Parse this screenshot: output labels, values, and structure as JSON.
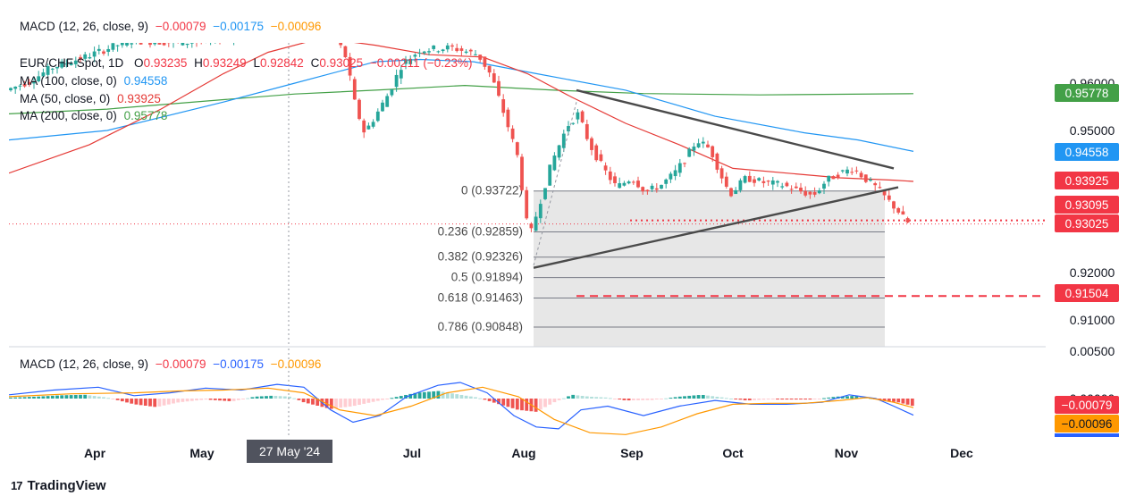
{
  "header": {
    "macd_top": {
      "label": "MACD (12, 26, close, 9)",
      "v1": "−0.00079",
      "v2": "−0.00175",
      "v3": "−0.00096"
    },
    "symbol": {
      "name": "EUR/CHF Spot, 1D",
      "o_label": "O",
      "o": "0.93235",
      "h_label": "H",
      "h": "0.93249",
      "l_label": "L",
      "l": "0.92842",
      "c_label": "C",
      "c": "0.93025",
      "change": "−0.00211 (−0.23%)"
    },
    "ma100": {
      "label": "MA (100, close, 0)",
      "value": "0.94558"
    },
    "ma50": {
      "label": "MA (50, close, 0)",
      "value": "0.93925"
    },
    "ma200": {
      "label": "MA (200, close, 0)",
      "value": "0.95778"
    },
    "macd_pane": {
      "label": "MACD (12, 26, close, 9)",
      "v1": "−0.00079",
      "v2": "−0.00175",
      "v3": "−0.00096"
    }
  },
  "colors": {
    "up": "#26a69a",
    "down": "#ef5350",
    "ma100": "#2196f3",
    "ma50": "#e53935",
    "ma200": "#43a047",
    "macd_line": "#2962ff",
    "signal_line": "#ff9800",
    "price_badge": "#f23645",
    "fib_fill": "#e0e0e0"
  },
  "chart_data": {
    "type": "candlestick",
    "symbol": "EUR/CHF Spot",
    "interval": "1D",
    "price_axis": {
      "ticks": [
        "0.96000",
        "0.95000",
        "0.92000",
        "0.91000"
      ],
      "range": [
        0.9059,
        0.966
      ]
    },
    "time_axis": {
      "ticks": [
        "Apr",
        "May",
        "Jul",
        "Aug",
        "Sep",
        "Oct",
        "Nov",
        "Dec"
      ],
      "crosshair_label": "27 May '24"
    },
    "macd_axis": {
      "ticks": [
        "0.00500",
        "0.00000"
      ]
    },
    "ohlc_last": {
      "open": 0.93235,
      "high": 0.93249,
      "low": 0.92842,
      "close": 0.93025,
      "change": -0.00211,
      "change_pct": -0.23
    },
    "moving_averages": [
      {
        "name": "MA (100, close, 0)",
        "value": 0.94558
      },
      {
        "name": "MA (50, close, 0)",
        "value": 0.93925
      },
      {
        "name": "MA (200, close, 0)",
        "value": 0.95778
      }
    ],
    "fibonacci": [
      {
        "label": "0 (0.93722)",
        "level": 0.93722
      },
      {
        "label": "0.236 (0.92859)",
        "level": 0.92859
      },
      {
        "label": "0.382 (0.92326)",
        "level": 0.92326
      },
      {
        "label": "0.5 (0.91894)",
        "level": 0.91894
      },
      {
        "label": "0.618 (0.91463)",
        "level": 0.91463
      },
      {
        "label": "0.786 (0.90848)",
        "level": 0.90848
      }
    ],
    "price_labels": [
      {
        "text": "0.95778",
        "value": 0.95778,
        "color": "#43a047"
      },
      {
        "text": "0.94558",
        "value": 0.94558,
        "color": "#2196f3"
      },
      {
        "text": "0.93925",
        "value": 0.93925,
        "color": "#f23645"
      },
      {
        "text": "0.93095",
        "value": 0.93095,
        "color": "#f23645"
      },
      {
        "text": "0.93025",
        "value": 0.93025,
        "color": "#f23645"
      },
      {
        "text": "0.91504",
        "value": 0.91504,
        "color": "#f23645"
      }
    ],
    "macd_labels": [
      {
        "text": "−0.00079",
        "color": "#f23645"
      },
      {
        "text": "−0.00096",
        "color": "#ff9800"
      }
    ],
    "dashed_target": 0.91504,
    "dotted_level": 0.93025
  },
  "branding": {
    "name": "TradingView"
  }
}
